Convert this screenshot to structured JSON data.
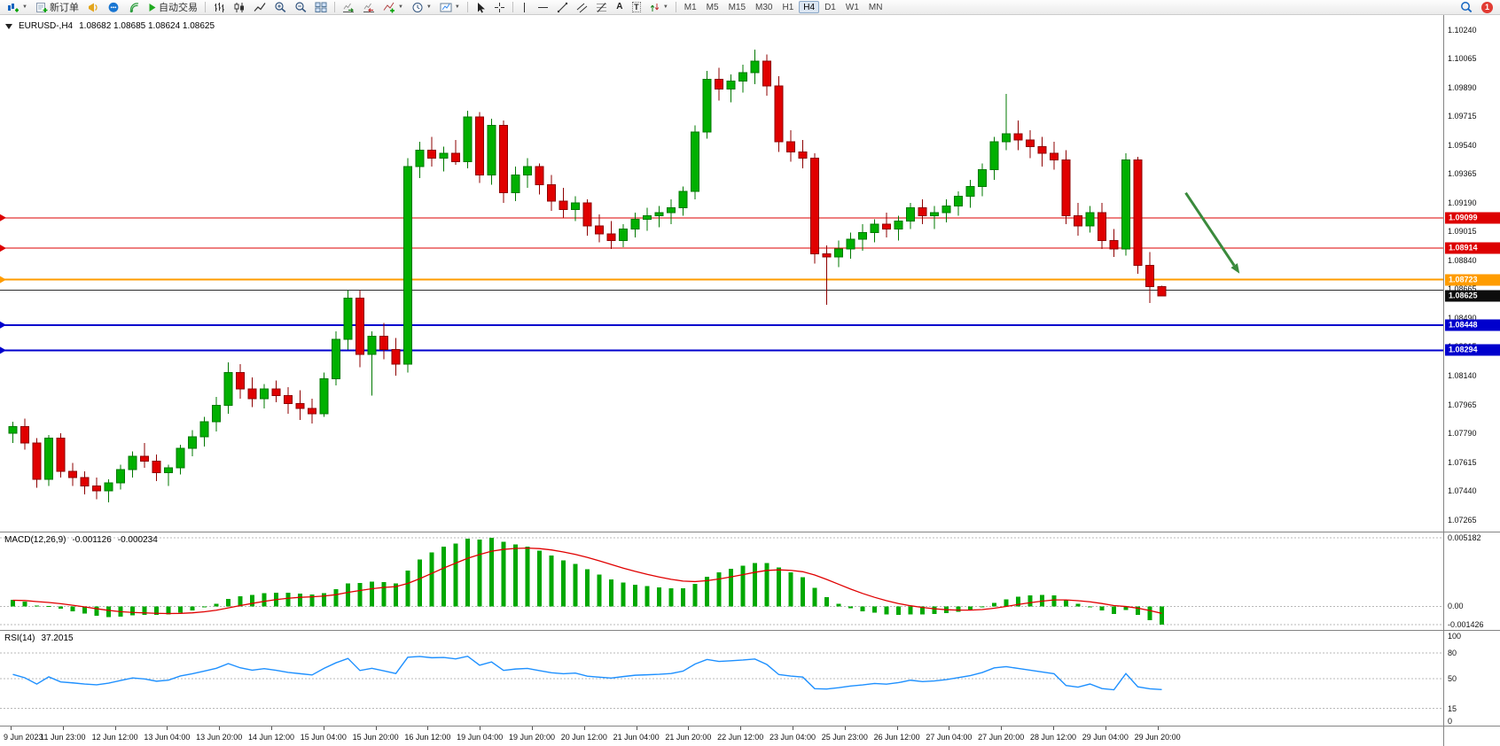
{
  "toolbar": {
    "new_order_label": "新订单",
    "autotrading_label": "自动交易",
    "text_tool_label": "A",
    "label_tool_label": "T",
    "timeframes": [
      "M1",
      "M5",
      "M15",
      "M30",
      "H1",
      "H4",
      "D1",
      "W1",
      "MN"
    ],
    "active_timeframe": "H4",
    "notification_count": "1",
    "icons": {
      "new_chart": "candlestick-plus",
      "new_order": "order-ticket",
      "megaphone": "megaphone",
      "chat": "chat-bubble",
      "signals": "signal-waves",
      "autotrading": "green-play-triangle",
      "bar_chart": "ohlc-bars",
      "candle_chart": "candlesticks",
      "line_chart": "polyline",
      "zoom_in": "magnifier-plus",
      "zoom_out": "magnifier-minus",
      "tile_windows": "window-grid",
      "auto_scroll": "chart-arrow-right",
      "chart_shift": "chart-shift-arrow",
      "indicators": "chart-green-plus",
      "periods": "clock",
      "templates": "chart-template",
      "cursor": "pointer-arrow",
      "crosshair": "crosshair",
      "vertical_line": "vertical-line",
      "horizontal_line": "horizontal-line",
      "trendline": "diagonal-line",
      "channel": "parallel-lines",
      "fibonacci": "fibonacci-lines",
      "arrows_tool": "arrow-marks",
      "search": "blue-magnifier",
      "notifications": "red-count-circle"
    }
  },
  "chart_data": {
    "type": "candlestick",
    "title": "EURUSD-,H4",
    "symbol": "EURUSD-",
    "period": "H4",
    "last_values_text": "1.08682 1.08685 1.08624 1.08625",
    "price_axis": {
      "top_price": 1.1033,
      "bottom_price": 1.0722,
      "labels": [
        "1.10240",
        "1.10065",
        "1.09890",
        "1.09715",
        "1.09540",
        "1.09365",
        "1.09190",
        "1.09015",
        "1.08840",
        "1.08665",
        "1.08490",
        "1.08315",
        "1.08140",
        "1.07965",
        "1.07790",
        "1.07615",
        "1.07440",
        "1.07265"
      ]
    },
    "time_axis": {
      "labels": [
        "9 Jun 2023",
        "11 Jun 23:00",
        "12 Jun 12:00",
        "13 Jun 04:00",
        "13 Jun 20:00",
        "14 Jun 12:00",
        "15 Jun 04:00",
        "15 Jun 20:00",
        "16 Jun 12:00",
        "19 Jun 04:00",
        "19 Jun 20:00",
        "20 Jun 12:00",
        "21 Jun 04:00",
        "21 Jun 20:00",
        "22 Jun 12:00",
        "23 Jun 04:00",
        "25 Jun 23:00",
        "26 Jun 12:00",
        "27 Jun 04:00",
        "27 Jun 20:00",
        "28 Jun 12:00",
        "29 Jun 04:00",
        "29 Jun 20:00"
      ]
    },
    "colors": {
      "bull": "#00b000",
      "bull_border": "#007800",
      "bear": "#e00000",
      "bear_border": "#8e0000",
      "background": "#ffffff",
      "axis_text": "#111111"
    },
    "candles": [
      [
        1.0779,
        1.0786,
        1.0773,
        1.0783
      ],
      [
        1.0783,
        1.0788,
        1.0769,
        1.0773
      ],
      [
        1.0773,
        1.0776,
        1.0746,
        1.0751
      ],
      [
        1.0751,
        1.0778,
        1.0747,
        1.0776
      ],
      [
        1.0776,
        1.0779,
        1.0752,
        1.0756
      ],
      [
        1.0756,
        1.0761,
        1.0747,
        1.0752
      ],
      [
        1.0752,
        1.0756,
        1.0742,
        1.0747
      ],
      [
        1.0747,
        1.0752,
        1.0739,
        1.0744
      ],
      [
        1.0744,
        1.0751,
        1.0737,
        1.0749
      ],
      [
        1.0749,
        1.076,
        1.0745,
        1.0757
      ],
      [
        1.0757,
        1.0768,
        1.0752,
        1.0765
      ],
      [
        1.0765,
        1.0773,
        1.0758,
        1.0762
      ],
      [
        1.0762,
        1.0766,
        1.075,
        1.0755
      ],
      [
        1.0755,
        1.076,
        1.0747,
        1.0758
      ],
      [
        1.0758,
        1.0772,
        1.0754,
        1.077
      ],
      [
        1.077,
        1.0781,
        1.0765,
        1.0777
      ],
      [
        1.0777,
        1.0789,
        1.0771,
        1.0786
      ],
      [
        1.0786,
        1.0801,
        1.078,
        1.0796
      ],
      [
        1.0796,
        1.0822,
        1.0791,
        1.0816
      ],
      [
        1.0816,
        1.0821,
        1.08,
        1.0806
      ],
      [
        1.0806,
        1.0813,
        1.0795,
        1.08
      ],
      [
        1.08,
        1.0809,
        1.0794,
        1.0806
      ],
      [
        1.0806,
        1.0811,
        1.0798,
        1.0802
      ],
      [
        1.0802,
        1.0807,
        1.0791,
        1.0797
      ],
      [
        1.0797,
        1.0805,
        1.0787,
        1.0794
      ],
      [
        1.0794,
        1.08,
        1.0785,
        1.0791
      ],
      [
        1.0791,
        1.0816,
        1.0789,
        1.0812
      ],
      [
        1.0812,
        1.0841,
        1.0808,
        1.0836
      ],
      [
        1.0836,
        1.0866,
        1.083,
        1.0861
      ],
      [
        1.0861,
        1.0866,
        1.0819,
        1.0827
      ],
      [
        1.0827,
        1.0841,
        1.0802,
        1.0838
      ],
      [
        1.0838,
        1.0846,
        1.0824,
        1.083
      ],
      [
        1.083,
        1.0837,
        1.0814,
        1.0821
      ],
      [
        1.0821,
        1.0946,
        1.0816,
        1.0941
      ],
      [
        1.0941,
        1.0956,
        1.0934,
        1.0951
      ],
      [
        1.0951,
        1.0959,
        1.0941,
        1.0946
      ],
      [
        1.0946,
        1.0953,
        1.0938,
        1.0949
      ],
      [
        1.0949,
        1.0957,
        1.0942,
        1.0944
      ],
      [
        1.0944,
        1.0975,
        1.094,
        1.0971
      ],
      [
        1.0971,
        1.0974,
        1.0931,
        1.0936
      ],
      [
        1.0936,
        1.097,
        1.093,
        1.0966
      ],
      [
        1.0966,
        1.0969,
        1.0919,
        1.0925
      ],
      [
        1.0925,
        1.0941,
        1.092,
        1.0936
      ],
      [
        1.0936,
        1.0946,
        1.0928,
        1.0941
      ],
      [
        1.0941,
        1.0943,
        1.0924,
        1.093
      ],
      [
        1.093,
        1.0936,
        1.0914,
        1.092
      ],
      [
        1.092,
        1.0928,
        1.091,
        1.0915
      ],
      [
        1.0915,
        1.0923,
        1.0908,
        1.0919
      ],
      [
        1.0919,
        1.0921,
        1.0899,
        1.0905
      ],
      [
        1.0905,
        1.0912,
        1.0895,
        1.09
      ],
      [
        1.09,
        1.0908,
        1.0891,
        1.0896
      ],
      [
        1.0896,
        1.0906,
        1.0892,
        1.0903
      ],
      [
        1.0903,
        1.0913,
        1.0898,
        1.0909
      ],
      [
        1.0909,
        1.0916,
        1.0902,
        1.0911
      ],
      [
        1.0911,
        1.0917,
        1.0904,
        1.0913
      ],
      [
        1.0913,
        1.0921,
        1.0906,
        1.0916
      ],
      [
        1.0916,
        1.0929,
        1.0911,
        1.0926
      ],
      [
        1.0926,
        1.0966,
        1.0921,
        1.0962
      ],
      [
        1.0962,
        1.0999,
        1.0958,
        1.0994
      ],
      [
        1.0994,
        1.1001,
        1.0981,
        1.0988
      ],
      [
        1.0988,
        1.0997,
        1.098,
        1.0993
      ],
      [
        1.0993,
        1.1003,
        1.0986,
        1.0998
      ],
      [
        1.0998,
        1.1012,
        1.0991,
        1.1005
      ],
      [
        1.1005,
        1.1009,
        1.0984,
        1.099
      ],
      [
        1.099,
        1.0996,
        1.095,
        1.0956
      ],
      [
        1.0956,
        1.0963,
        1.0944,
        1.095
      ],
      [
        1.095,
        1.0957,
        1.094,
        1.0946
      ],
      [
        1.0946,
        1.0949,
        1.0882,
        1.0888
      ],
      [
        1.0888,
        1.0893,
        1.0857,
        1.0886
      ],
      [
        1.0886,
        1.0896,
        1.088,
        1.0891
      ],
      [
        1.0891,
        1.0901,
        1.0885,
        1.0897
      ],
      [
        1.0897,
        1.0906,
        1.089,
        1.0901
      ],
      [
        1.0901,
        1.0909,
        1.0895,
        1.0906
      ],
      [
        1.0906,
        1.0913,
        1.0898,
        1.0903
      ],
      [
        1.0903,
        1.0911,
        1.0896,
        1.0908
      ],
      [
        1.0908,
        1.0919,
        1.0903,
        1.0916
      ],
      [
        1.0916,
        1.0921,
        1.0906,
        1.0911
      ],
      [
        1.0911,
        1.0917,
        1.0903,
        1.0913
      ],
      [
        1.0913,
        1.0921,
        1.0907,
        1.0917
      ],
      [
        1.0917,
        1.0926,
        1.0911,
        1.0923
      ],
      [
        1.0923,
        1.0933,
        1.0916,
        1.0929
      ],
      [
        1.0929,
        1.0943,
        1.0923,
        1.0939
      ],
      [
        1.0939,
        1.0959,
        1.0933,
        1.0956
      ],
      [
        1.0956,
        1.0985,
        1.0951,
        1.0961
      ],
      [
        1.0961,
        1.0969,
        1.0951,
        1.0957
      ],
      [
        1.0957,
        1.0963,
        1.0946,
        1.0953
      ],
      [
        1.0953,
        1.0959,
        1.0941,
        1.0949
      ],
      [
        1.0949,
        1.0956,
        1.0939,
        1.0945
      ],
      [
        1.0945,
        1.0951,
        1.0906,
        1.0911
      ],
      [
        1.0911,
        1.0919,
        1.0899,
        1.0905
      ],
      [
        1.0905,
        1.0917,
        1.0901,
        1.0913
      ],
      [
        1.0913,
        1.0919,
        1.0891,
        1.0896
      ],
      [
        1.0896,
        1.0903,
        1.0886,
        1.0891
      ],
      [
        1.0891,
        1.0949,
        1.0887,
        1.0945
      ],
      [
        1.0945,
        1.0947,
        1.0876,
        1.0881
      ],
      [
        1.0881,
        1.0889,
        1.0858,
        1.0868
      ],
      [
        1.08682,
        1.08685,
        1.08624,
        1.08625
      ]
    ],
    "horizontal_lines": [
      {
        "price": 1.09099,
        "color": "#dd0000",
        "badge_text": "1.09099",
        "thickness": 1
      },
      {
        "price": 1.08914,
        "color": "#dd0000",
        "badge_text": "1.08914",
        "thickness": 1
      },
      {
        "price": 1.08723,
        "color": "#ff9c00",
        "badge_text": "1.08723",
        "thickness": 2
      },
      {
        "price": 1.0866,
        "color": "#2b2b2b",
        "badge_text": null,
        "thickness": 1
      },
      {
        "price": 1.08448,
        "color": "#0000cd",
        "badge_text": "1.08448",
        "thickness": 2
      },
      {
        "price": 1.08294,
        "color": "#0000cd",
        "badge_text": "1.08294",
        "thickness": 2
      }
    ],
    "current_price": {
      "value": 1.08625,
      "badge_text": "1.08625",
      "badge_color": "#0d0d0d"
    },
    "arrow_annotation": {
      "from_candle": 98,
      "from_price": 1.0925,
      "to_candle": 102.5,
      "to_price": 1.0876,
      "color": "#3a8a3c",
      "thickness": 3
    },
    "indicators": {
      "macd": {
        "name": "MACD(12,26,9)",
        "value_main": "-0.001126",
        "value_signal": "-0.000234",
        "axis_labels": [
          "0.005182",
          "0.00",
          "-0.001426"
        ],
        "histogram_color": "#00a800",
        "signal_color": "#e00000"
      },
      "rsi": {
        "name": "RSI(14)",
        "value": "37.2015",
        "axis_labels": [
          "100",
          "80",
          "50",
          "15",
          "0"
        ],
        "levels": [
          80,
          50,
          15
        ],
        "line_color": "#1e90ff"
      }
    }
  }
}
